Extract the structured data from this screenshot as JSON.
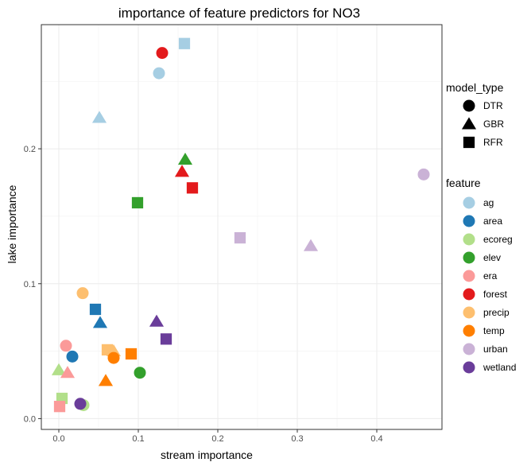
{
  "chart_data": {
    "type": "scatter",
    "title": "importance of feature predictors for NO3",
    "xlabel": "stream importance",
    "ylabel": "lake importance",
    "xlim": [
      -0.022,
      0.482
    ],
    "ylim": [
      -0.008,
      0.292
    ],
    "x_ticks": [
      0.0,
      0.1,
      0.2,
      0.3,
      0.4
    ],
    "x_tick_labels": [
      "0.0",
      "0.1",
      "0.2",
      "0.3",
      "0.4"
    ],
    "y_ticks": [
      0.0,
      0.1,
      0.2
    ],
    "y_tick_labels": [
      "0.0",
      "0.1",
      "0.2"
    ],
    "grid": true,
    "legend_placement": "right",
    "shape_legend": {
      "title": "model_type",
      "items": [
        {
          "label": "DTR",
          "shape": "circle"
        },
        {
          "label": "GBR",
          "shape": "triangle"
        },
        {
          "label": "RFR",
          "shape": "square"
        }
      ]
    },
    "color_legend": {
      "title": "feature",
      "items": [
        {
          "label": "ag",
          "color": "#A6CEE3"
        },
        {
          "label": "area",
          "color": "#1F78B4"
        },
        {
          "label": "ecoreg",
          "color": "#B2DF8A"
        },
        {
          "label": "elev",
          "color": "#33A02C"
        },
        {
          "label": "era",
          "color": "#FB9A99"
        },
        {
          "label": "forest",
          "color": "#E31A1C"
        },
        {
          "label": "precip",
          "color": "#FDBF6F"
        },
        {
          "label": "temp",
          "color": "#FF7F00"
        },
        {
          "label": "urban",
          "color": "#CAB2D6"
        },
        {
          "label": "wetland",
          "color": "#6A3D9A"
        }
      ]
    },
    "points": [
      {
        "feature": "ag",
        "model_type": "DTR",
        "x": 0.126,
        "y": 0.256
      },
      {
        "feature": "ag",
        "model_type": "GBR",
        "x": 0.051,
        "y": 0.223
      },
      {
        "feature": "ag",
        "model_type": "RFR",
        "x": 0.158,
        "y": 0.278
      },
      {
        "feature": "area",
        "model_type": "DTR",
        "x": 0.017,
        "y": 0.046
      },
      {
        "feature": "area",
        "model_type": "GBR",
        "x": 0.052,
        "y": 0.071
      },
      {
        "feature": "area",
        "model_type": "RFR",
        "x": 0.046,
        "y": 0.081
      },
      {
        "feature": "ecoreg",
        "model_type": "DTR",
        "x": 0.031,
        "y": 0.01
      },
      {
        "feature": "ecoreg",
        "model_type": "GBR",
        "x": 0.0,
        "y": 0.036
      },
      {
        "feature": "ecoreg",
        "model_type": "RFR",
        "x": 0.004,
        "y": 0.015
      },
      {
        "feature": "elev",
        "model_type": "DTR",
        "x": 0.102,
        "y": 0.034
      },
      {
        "feature": "elev",
        "model_type": "GBR",
        "x": 0.159,
        "y": 0.192
      },
      {
        "feature": "elev",
        "model_type": "RFR",
        "x": 0.099,
        "y": 0.16
      },
      {
        "feature": "era",
        "model_type": "DTR",
        "x": 0.009,
        "y": 0.054
      },
      {
        "feature": "era",
        "model_type": "GBR",
        "x": 0.011,
        "y": 0.034
      },
      {
        "feature": "era",
        "model_type": "RFR",
        "x": 0.001,
        "y": 0.009
      },
      {
        "feature": "forest",
        "model_type": "DTR",
        "x": 0.13,
        "y": 0.271
      },
      {
        "feature": "forest",
        "model_type": "GBR",
        "x": 0.155,
        "y": 0.183
      },
      {
        "feature": "forest",
        "model_type": "RFR",
        "x": 0.168,
        "y": 0.171
      },
      {
        "feature": "precip",
        "model_type": "DTR",
        "x": 0.03,
        "y": 0.093
      },
      {
        "feature": "precip",
        "model_type": "GBR",
        "x": 0.069,
        "y": 0.05
      },
      {
        "feature": "precip",
        "model_type": "RFR",
        "x": 0.061,
        "y": 0.051
      },
      {
        "feature": "temp",
        "model_type": "DTR",
        "x": 0.069,
        "y": 0.045
      },
      {
        "feature": "temp",
        "model_type": "GBR",
        "x": 0.059,
        "y": 0.028
      },
      {
        "feature": "temp",
        "model_type": "RFR",
        "x": 0.091,
        "y": 0.048
      },
      {
        "feature": "urban",
        "model_type": "DTR",
        "x": 0.459,
        "y": 0.181
      },
      {
        "feature": "urban",
        "model_type": "GBR",
        "x": 0.317,
        "y": 0.128
      },
      {
        "feature": "urban",
        "model_type": "RFR",
        "x": 0.228,
        "y": 0.134
      },
      {
        "feature": "wetland",
        "model_type": "DTR",
        "x": 0.027,
        "y": 0.011
      },
      {
        "feature": "wetland",
        "model_type": "GBR",
        "x": 0.123,
        "y": 0.072
      },
      {
        "feature": "wetland",
        "model_type": "RFR",
        "x": 0.135,
        "y": 0.059
      }
    ]
  }
}
